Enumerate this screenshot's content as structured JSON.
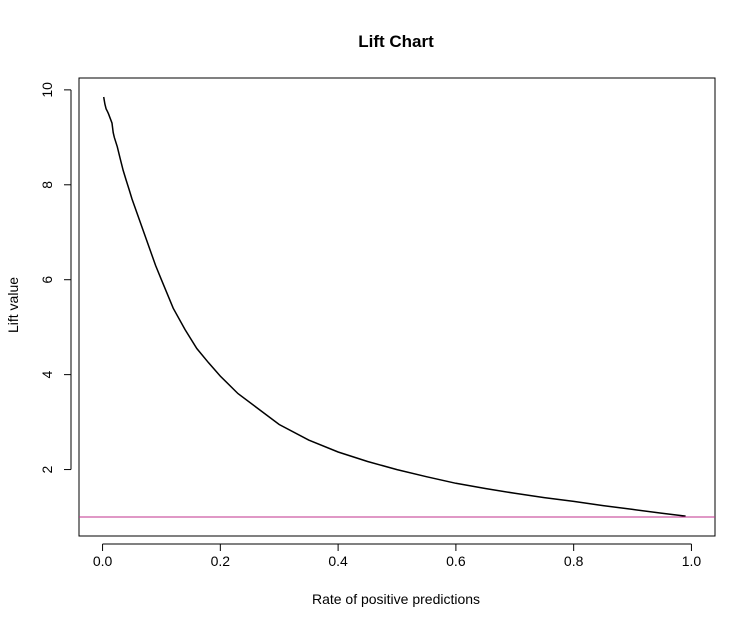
{
  "chart_data": {
    "type": "line",
    "title": "Lift Chart",
    "xlabel": "Rate of positive predictions",
    "ylabel": "Lift value",
    "xlim": [
      -0.04,
      1.04
    ],
    "ylim": [
      0.6,
      10.25
    ],
    "xticks": [
      0.0,
      0.2,
      0.4,
      0.6,
      0.8,
      1.0
    ],
    "xtick_labels": [
      "0.0",
      "0.2",
      "0.4",
      "0.6",
      "0.8",
      "1.0"
    ],
    "yticks": [
      2,
      4,
      6,
      8,
      10
    ],
    "ytick_labels": [
      "2",
      "4",
      "6",
      "8",
      "10"
    ],
    "grid": false,
    "legend": "none",
    "series": [
      {
        "color": "#000000",
        "x": [
          0.002,
          0.004,
          0.006,
          0.008,
          0.01,
          0.013,
          0.016,
          0.018,
          0.02,
          0.025,
          0.03,
          0.035,
          0.04,
          0.045,
          0.05,
          0.06,
          0.07,
          0.08,
          0.09,
          0.1,
          0.12,
          0.14,
          0.16,
          0.18,
          0.2,
          0.23,
          0.26,
          0.3,
          0.35,
          0.4,
          0.45,
          0.5,
          0.55,
          0.6,
          0.65,
          0.7,
          0.75,
          0.8,
          0.85,
          0.9,
          0.95,
          0.99
        ],
        "y": [
          9.85,
          9.7,
          9.6,
          9.55,
          9.5,
          9.4,
          9.3,
          9.1,
          9.0,
          8.8,
          8.55,
          8.3,
          8.1,
          7.9,
          7.7,
          7.35,
          7.0,
          6.65,
          6.3,
          6.0,
          5.4,
          4.95,
          4.55,
          4.25,
          3.97,
          3.6,
          3.32,
          2.95,
          2.62,
          2.37,
          2.17,
          2.0,
          1.85,
          1.71,
          1.6,
          1.5,
          1.41,
          1.33,
          1.24,
          1.16,
          1.08,
          1.02
        ]
      },
      {
        "color": "#c0308c",
        "x": [
          -0.04,
          1.04
        ],
        "y": [
          1.0,
          1.0
        ]
      }
    ]
  }
}
